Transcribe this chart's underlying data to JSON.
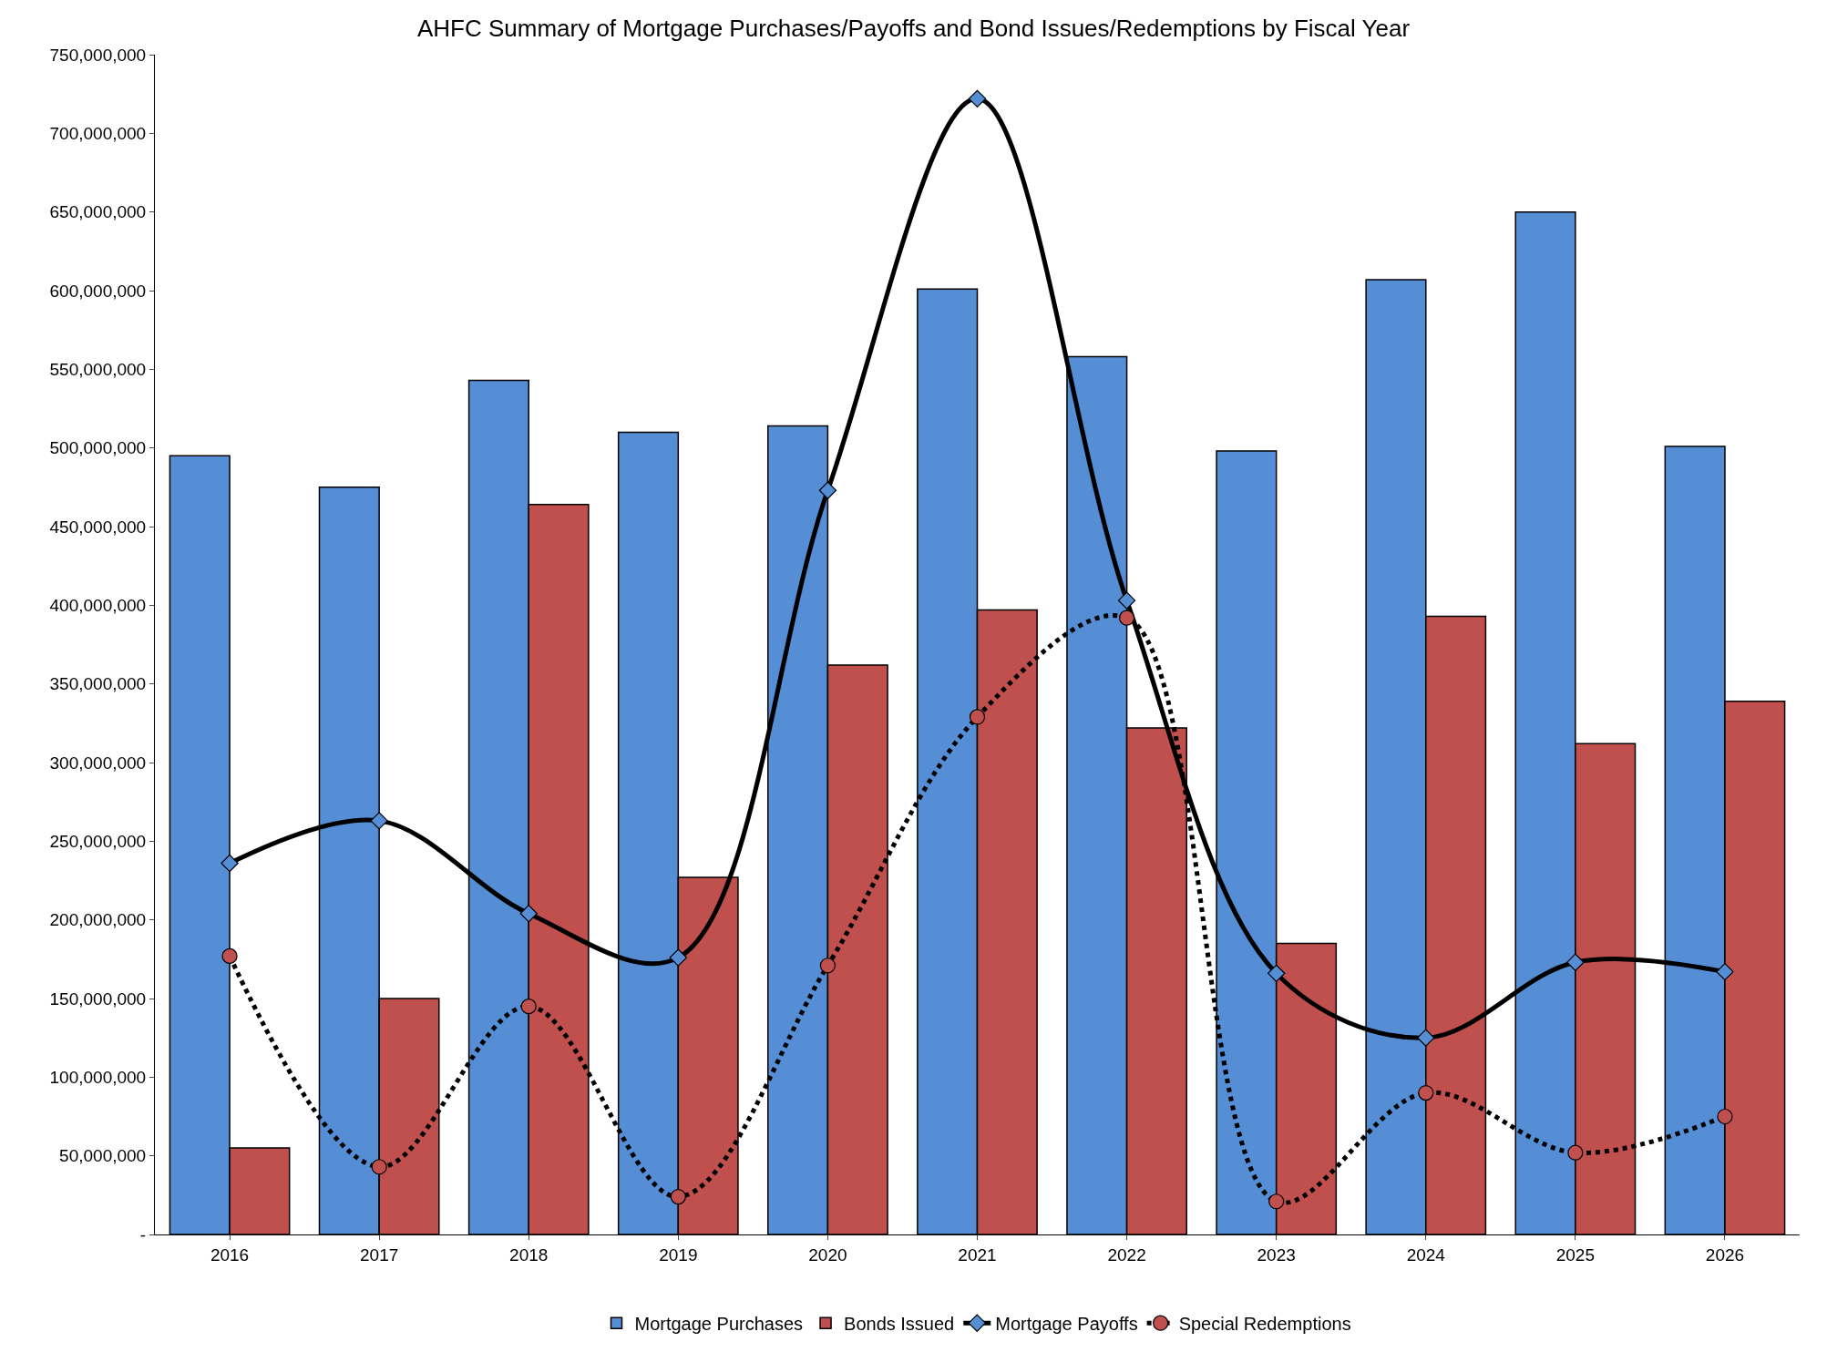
{
  "chart_data": {
    "type": "bar",
    "title": "AHFC Summary of Mortgage Purchases/Payoffs and Bond Issues/Redemptions by Fiscal Year",
    "categories": [
      "2016",
      "2017",
      "2018",
      "2019",
      "2020",
      "2021",
      "2022",
      "2023",
      "2024",
      "2025",
      "2026"
    ],
    "series": [
      {
        "name": "Mortgage Purchases",
        "color": "#558ed5",
        "values": [
          495000000,
          475000000,
          543000000,
          510000000,
          514000000,
          601000000,
          558000000,
          498000000,
          607000000,
          650000000,
          501000000
        ]
      },
      {
        "name": "Bonds Issued",
        "color": "#c0504d",
        "values": [
          55000000,
          150000000,
          464000000,
          227000000,
          362000000,
          397000000,
          322000000,
          185000000,
          393000000,
          312000000,
          339000000
        ]
      },
      {
        "name": "Mortgage Payoffs",
        "type": "line",
        "color": "#000000",
        "marker": "diamond",
        "line_style": "solid",
        "values": [
          236000000,
          263000000,
          204000000,
          176000000,
          473000000,
          722000000,
          403000000,
          166000000,
          125000000,
          173000000,
          167000000
        ]
      },
      {
        "name": "Special Redemptions",
        "type": "line",
        "color": "#000000",
        "marker": "circle",
        "line_style": "dotted",
        "values": [
          177000000,
          43000000,
          145000000,
          24000000,
          171000000,
          329000000,
          392000000,
          21000000,
          90000000,
          52000000,
          75000000
        ]
      }
    ],
    "ylim": [
      0,
      750000000
    ],
    "yticks": [
      {
        "value": 0,
        "label": "-"
      },
      {
        "value": 50000000,
        "label": "50,000,000"
      },
      {
        "value": 100000000,
        "label": "100,000,000"
      },
      {
        "value": 150000000,
        "label": "150,000,000"
      },
      {
        "value": 200000000,
        "label": "200,000,000"
      },
      {
        "value": 250000000,
        "label": "250,000,000"
      },
      {
        "value": 300000000,
        "label": "300,000,000"
      },
      {
        "value": 350000000,
        "label": "350,000,000"
      },
      {
        "value": 400000000,
        "label": "400,000,000"
      },
      {
        "value": 450000000,
        "label": "450,000,000"
      },
      {
        "value": 500000000,
        "label": "500,000,000"
      },
      {
        "value": 550000000,
        "label": "550,000,000"
      },
      {
        "value": 600000000,
        "label": "600,000,000"
      },
      {
        "value": 650000000,
        "label": "650,000,000"
      },
      {
        "value": 700000000,
        "label": "700,000,000"
      },
      {
        "value": 750000000,
        "label": "750,000,000"
      }
    ],
    "grid": false,
    "legend": "bottom"
  }
}
